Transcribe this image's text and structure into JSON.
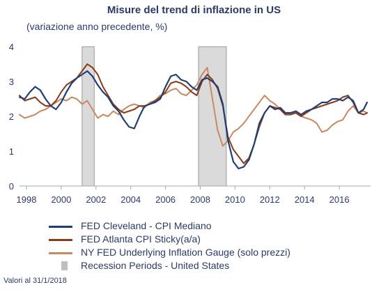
{
  "title": "Misure del trend di inflazione in US",
  "subtitle": "(variazione anno precedente, %)",
  "footnote": "Valori al 31/1/2018",
  "chart_data": {
    "type": "line",
    "xlim": [
      1997.6,
      2017.8
    ],
    "ylim": [
      0,
      4
    ],
    "x_ticks": [
      1998,
      2000,
      2002,
      2004,
      2006,
      2008,
      2010,
      2012,
      2014,
      2016
    ],
    "x_tick_labels": [
      "1998",
      "2000",
      "2002",
      "2004",
      "2006",
      "2008",
      "2010",
      "2012",
      "2014",
      "2016"
    ],
    "y_ticks": [
      0,
      1,
      2,
      3,
      4
    ],
    "y_tick_labels": [
      "0",
      "1",
      "2",
      "3",
      "4"
    ],
    "grid": false,
    "legend_position": "bottom",
    "recessions": [
      {
        "start": 2001.2,
        "end": 2001.9
      },
      {
        "start": 2007.9,
        "end": 2009.5
      }
    ],
    "series": [
      {
        "name": "FED Cleveland - CPI Mediano",
        "color": "#1f3e73",
        "x": [
          1997.6,
          1997.9,
          1998.2,
          1998.5,
          1998.8,
          1999.1,
          1999.4,
          1999.7,
          2000.0,
          2000.3,
          2000.6,
          2000.9,
          2001.2,
          2001.5,
          2001.8,
          2002.1,
          2002.4,
          2002.7,
          2003.0,
          2003.3,
          2003.6,
          2003.9,
          2004.2,
          2004.5,
          2004.8,
          2005.1,
          2005.4,
          2005.7,
          2006.0,
          2006.3,
          2006.6,
          2006.9,
          2007.2,
          2007.5,
          2007.8,
          2008.1,
          2008.4,
          2008.7,
          2009.0,
          2009.3,
          2009.6,
          2009.9,
          2010.2,
          2010.5,
          2010.8,
          2011.1,
          2011.4,
          2011.7,
          2012.0,
          2012.3,
          2012.6,
          2012.9,
          2013.2,
          2013.5,
          2013.8,
          2014.1,
          2014.4,
          2014.7,
          2015.0,
          2015.3,
          2015.6,
          2015.9,
          2016.2,
          2016.5,
          2016.8,
          2017.1,
          2017.4,
          2017.6
        ],
        "values": [
          2.55,
          2.5,
          2.7,
          2.85,
          2.75,
          2.5,
          2.3,
          2.2,
          2.4,
          2.7,
          2.95,
          3.1,
          3.2,
          3.3,
          3.15,
          2.9,
          2.7,
          2.55,
          2.3,
          2.15,
          1.9,
          1.7,
          1.65,
          2.0,
          2.3,
          2.35,
          2.4,
          2.5,
          2.85,
          3.15,
          3.2,
          3.05,
          3.0,
          2.85,
          2.75,
          3.05,
          3.1,
          3.0,
          2.85,
          2.35,
          1.3,
          0.7,
          0.5,
          0.55,
          0.75,
          1.2,
          1.8,
          2.1,
          2.3,
          2.2,
          2.25,
          2.1,
          2.1,
          2.15,
          2.05,
          2.15,
          2.2,
          2.3,
          2.4,
          2.4,
          2.5,
          2.5,
          2.45,
          2.55,
          2.45,
          2.1,
          2.2,
          2.4
        ]
      },
      {
        "name": "FED Atlanta CPI Sticky(a/a)",
        "color": "#8b3a1a",
        "x": [
          1997.6,
          1997.9,
          1998.2,
          1998.5,
          1998.8,
          1999.1,
          1999.4,
          1999.7,
          2000.0,
          2000.3,
          2000.6,
          2000.9,
          2001.2,
          2001.5,
          2001.8,
          2002.1,
          2002.4,
          2002.7,
          2003.0,
          2003.3,
          2003.6,
          2003.9,
          2004.2,
          2004.5,
          2004.8,
          2005.1,
          2005.4,
          2005.7,
          2006.0,
          2006.3,
          2006.6,
          2006.9,
          2007.2,
          2007.5,
          2007.8,
          2008.1,
          2008.4,
          2008.7,
          2009.0,
          2009.3,
          2009.6,
          2009.9,
          2010.2,
          2010.5,
          2010.8,
          2011.1,
          2011.4,
          2011.7,
          2012.0,
          2012.3,
          2012.6,
          2012.9,
          2013.2,
          2013.5,
          2013.8,
          2014.1,
          2014.4,
          2014.7,
          2015.0,
          2015.3,
          2015.6,
          2015.9,
          2016.2,
          2016.5,
          2016.8,
          2017.1,
          2017.4,
          2017.6
        ],
        "values": [
          2.6,
          2.45,
          2.5,
          2.55,
          2.4,
          2.3,
          2.3,
          2.45,
          2.7,
          2.9,
          3.0,
          3.1,
          3.3,
          3.5,
          3.4,
          3.2,
          2.85,
          2.6,
          2.35,
          2.2,
          2.1,
          2.15,
          2.2,
          2.3,
          2.3,
          2.35,
          2.45,
          2.55,
          2.7,
          2.95,
          3.0,
          2.95,
          2.85,
          2.7,
          2.6,
          3.0,
          3.2,
          3.05,
          2.8,
          2.3,
          1.4,
          1.05,
          0.85,
          0.65,
          0.8,
          1.2,
          1.7,
          2.1,
          2.3,
          2.25,
          2.2,
          2.05,
          2.05,
          2.1,
          2.0,
          2.1,
          2.2,
          2.25,
          2.3,
          2.35,
          2.4,
          2.45,
          2.55,
          2.6,
          2.4,
          2.1,
          2.05,
          2.1
        ]
      },
      {
        "name": "NY FED Underlying Inflation Gauge (solo prezzi)",
        "color": "#c88a63",
        "x": [
          1997.6,
          1997.9,
          1998.2,
          1998.5,
          1998.8,
          1999.1,
          1999.4,
          1999.7,
          2000.0,
          2000.3,
          2000.6,
          2000.9,
          2001.2,
          2001.5,
          2001.8,
          2002.1,
          2002.4,
          2002.7,
          2003.0,
          2003.3,
          2003.6,
          2003.9,
          2004.2,
          2004.5,
          2004.8,
          2005.1,
          2005.4,
          2005.7,
          2006.0,
          2006.3,
          2006.6,
          2006.9,
          2007.2,
          2007.5,
          2007.8,
          2008.1,
          2008.4,
          2008.7,
          2009.0,
          2009.3,
          2009.6,
          2009.9,
          2010.2,
          2010.5,
          2010.8,
          2011.1,
          2011.4,
          2011.7,
          2012.0,
          2012.3,
          2012.6,
          2012.9,
          2013.2,
          2013.5,
          2013.8,
          2014.1,
          2014.4,
          2014.7,
          2015.0,
          2015.3,
          2015.6,
          2015.9,
          2016.2,
          2016.5,
          2016.8,
          2017.1,
          2017.4,
          2017.6
        ],
        "values": [
          2.05,
          1.95,
          2.0,
          2.05,
          2.15,
          2.2,
          2.3,
          2.4,
          2.5,
          2.45,
          2.55,
          2.5,
          2.35,
          2.45,
          2.2,
          1.95,
          2.05,
          2.0,
          2.15,
          2.05,
          2.2,
          2.3,
          2.35,
          2.3,
          2.25,
          2.4,
          2.45,
          2.6,
          2.65,
          2.75,
          2.8,
          2.65,
          2.6,
          2.75,
          2.9,
          3.2,
          3.4,
          2.5,
          1.6,
          1.15,
          1.3,
          1.55,
          1.65,
          1.8,
          2.0,
          2.2,
          2.4,
          2.6,
          2.45,
          2.35,
          2.2,
          2.05,
          2.1,
          2.1,
          2.0,
          1.95,
          1.9,
          1.8,
          1.55,
          1.6,
          1.75,
          1.85,
          1.9,
          2.15,
          2.3,
          2.1,
          2.15,
          2.1
        ]
      }
    ],
    "legend": [
      {
        "label": "FED Cleveland - CPI Mediano",
        "kind": "line",
        "color": "#1f3e73"
      },
      {
        "label": "FED Atlanta CPI Sticky(a/a)",
        "kind": "line",
        "color": "#8b3a1a"
      },
      {
        "label": "NY FED Underlying Inflation Gauge (solo prezzi)",
        "kind": "line",
        "color": "#c88a63"
      },
      {
        "label": "Recession Periods - United States",
        "kind": "box",
        "color": "#bfbfbf"
      }
    ]
  }
}
